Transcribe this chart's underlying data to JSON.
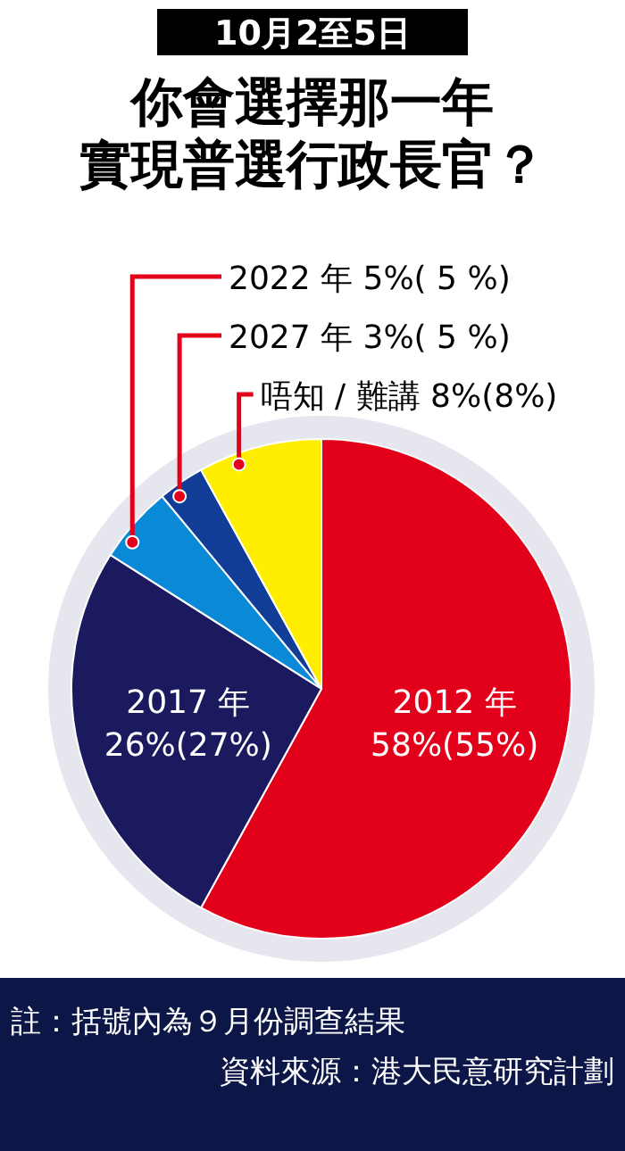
{
  "chart_data": {
    "type": "pie",
    "subtitle": "10月2至5日",
    "title": "你會選擇那一年實現普選行政長官？",
    "categories": [
      "2012 年",
      "2017 年",
      "2022 年",
      "2027 年",
      "唔知 / 難講"
    ],
    "values": [
      58,
      26,
      5,
      3,
      8
    ],
    "value_labels": [
      "58%(55%)",
      "26%(27%)",
      "5%( 5 %)",
      "3%( 5 %)",
      "8%(8%)"
    ],
    "colors": [
      "#e3001b",
      "#1b1a5e",
      "#0a8ad6",
      "#113d96",
      "#ffee00"
    ],
    "annotations": [
      "註：括號內為９月份調查結果",
      "資料來源：港大民意研究計劃"
    ]
  }
}
